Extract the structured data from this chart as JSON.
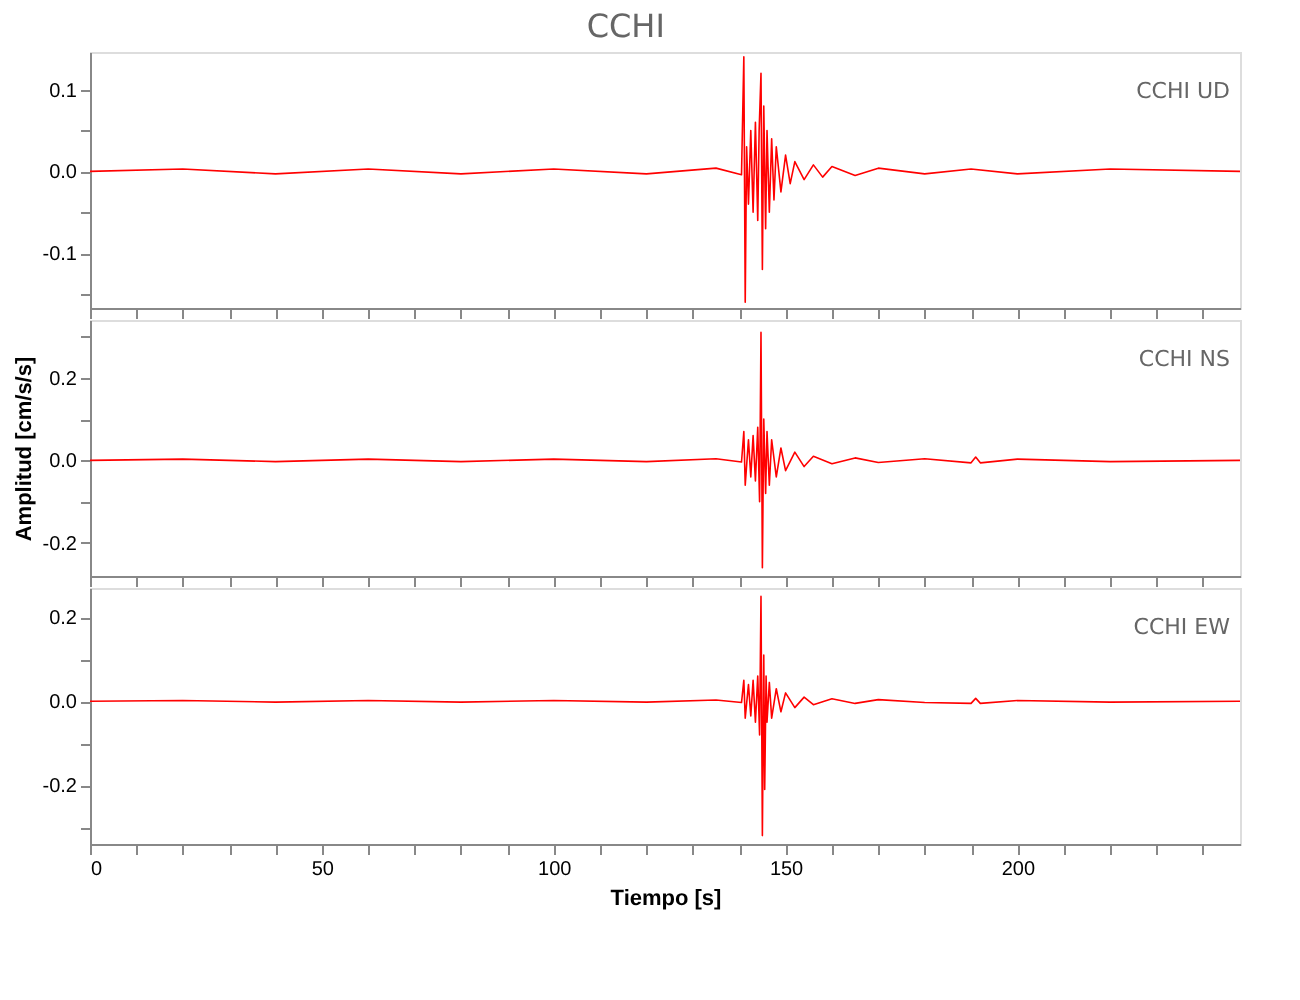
{
  "chart_data": [
    {
      "type": "line",
      "title": "CCHI",
      "annotations": [
        "CCHI UD"
      ],
      "tick_labels": "y",
      "grid": false,
      "xlim": [
        0,
        248
      ],
      "ylim": [
        -0.167,
        0.146
      ],
      "xticks": [
        0,
        {
          "value": 10,
          "label": null
        },
        {
          "value": 20,
          "label": null
        },
        {
          "value": 30,
          "label": null
        },
        {
          "value": 40,
          "label": null
        },
        50,
        {
          "value": 60,
          "label": null
        },
        {
          "value": 70,
          "label": null
        },
        {
          "value": 80,
          "label": null
        },
        {
          "value": 90,
          "label": null
        },
        100,
        {
          "value": 110,
          "label": null
        },
        {
          "value": 120,
          "label": null
        },
        {
          "value": 130,
          "label": null
        },
        {
          "value": 140,
          "label": null
        },
        150,
        {
          "value": 160,
          "label": null
        },
        {
          "value": 170,
          "label": null
        },
        {
          "value": 180,
          "label": null
        },
        {
          "value": 190,
          "label": null
        },
        200,
        {
          "value": 210,
          "label": null
        },
        {
          "value": 220,
          "label": null
        },
        {
          "value": 230,
          "label": null
        },
        {
          "value": 240,
          "label": null
        }
      ],
      "yticks": [
        {
          "value": -0.15,
          "label": null
        },
        -0.1,
        {
          "value": -0.05,
          "label": null
        },
        {
          "value": 0,
          "label": "0.0"
        },
        {
          "value": 0.05,
          "label": null
        },
        0.1
      ],
      "series": [
        {
          "color": "#ff0000",
          "x": [
            0,
            20,
            40,
            60,
            80,
            100,
            120,
            135,
            140.5,
            141,
            141.3,
            141.6,
            142,
            142.5,
            143,
            143.5,
            144,
            144.3,
            144.7,
            145,
            145.3,
            145.7,
            146,
            146.5,
            147,
            147.5,
            148,
            149,
            150,
            151,
            152,
            154,
            156,
            158,
            160,
            165,
            170,
            180,
            190,
            200,
            220,
            248
          ],
          "values": [
            0,
            0.003,
            -0.003,
            0.003,
            -0.003,
            0.003,
            -0.003,
            0.004,
            -0.004,
            0.14,
            -0.16,
            0.03,
            -0.04,
            0.05,
            -0.05,
            0.06,
            -0.06,
            0.05,
            0.12,
            -0.12,
            0.08,
            -0.07,
            0.05,
            -0.05,
            0.04,
            -0.035,
            0.03,
            -0.025,
            0.02,
            -0.015,
            0.012,
            -0.01,
            0.008,
            -0.007,
            0.006,
            -0.005,
            0.004,
            -0.003,
            0.003,
            -0.003,
            0.003,
            0
          ]
        }
      ]
    },
    {
      "type": "line",
      "ylabel": "Amplitud [cm/s/s]",
      "annotations": [
        "CCHI NS"
      ],
      "tick_labels": "y",
      "grid": false,
      "xlim": [
        0,
        248
      ],
      "ylim": [
        -0.28,
        0.34
      ],
      "xticks": [
        0,
        {
          "value": 10,
          "label": null
        },
        {
          "value": 20,
          "label": null
        },
        {
          "value": 30,
          "label": null
        },
        {
          "value": 40,
          "label": null
        },
        50,
        {
          "value": 60,
          "label": null
        },
        {
          "value": 70,
          "label": null
        },
        {
          "value": 80,
          "label": null
        },
        {
          "value": 90,
          "label": null
        },
        100,
        {
          "value": 110,
          "label": null
        },
        {
          "value": 120,
          "label": null
        },
        {
          "value": 130,
          "label": null
        },
        {
          "value": 140,
          "label": null
        },
        150,
        {
          "value": 160,
          "label": null
        },
        {
          "value": 170,
          "label": null
        },
        {
          "value": 180,
          "label": null
        },
        {
          "value": 190,
          "label": null
        },
        200,
        {
          "value": 210,
          "label": null
        },
        {
          "value": 220,
          "label": null
        },
        {
          "value": 230,
          "label": null
        },
        {
          "value": 240,
          "label": null
        }
      ],
      "yticks": [
        {
          "value": -0.2,
          "label": "-0.2"
        },
        {
          "value": -0.1,
          "label": null
        },
        {
          "value": 0,
          "label": "0.0"
        },
        {
          "value": 0.1,
          "label": null
        },
        0.2,
        {
          "value": 0.3,
          "label": null
        }
      ],
      "series": [
        {
          "color": "#ff0000",
          "x": [
            0,
            20,
            40,
            60,
            80,
            100,
            120,
            135,
            140.5,
            141,
            141.3,
            142,
            142.5,
            143,
            143.5,
            144,
            144.4,
            144.7,
            145,
            145.3,
            145.7,
            146,
            146.5,
            147,
            148,
            149,
            150,
            152,
            154,
            156,
            160,
            165,
            170,
            180,
            190,
            191,
            192,
            200,
            220,
            248
          ],
          "values": [
            0,
            0.003,
            -0.003,
            0.003,
            -0.003,
            0.003,
            -0.003,
            0.004,
            -0.004,
            0.07,
            -0.06,
            0.05,
            -0.04,
            0.06,
            -0.05,
            0.08,
            -0.1,
            0.31,
            -0.26,
            0.1,
            -0.08,
            0.07,
            -0.06,
            0.05,
            -0.04,
            0.03,
            -0.025,
            0.02,
            -0.015,
            0.01,
            -0.008,
            0.006,
            -0.005,
            0.004,
            -0.006,
            0.008,
            -0.006,
            0.003,
            -0.003,
            0
          ]
        }
      ]
    },
    {
      "type": "line",
      "xlabel": "Tiempo [s]",
      "annotations": [
        "CCHI EW"
      ],
      "grid": false,
      "xlim": [
        0,
        248
      ],
      "ylim": [
        -0.34,
        0.27
      ],
      "xticks": [
        0,
        {
          "value": 10,
          "label": null
        },
        {
          "value": 20,
          "label": null
        },
        {
          "value": 30,
          "label": null
        },
        {
          "value": 40,
          "label": null
        },
        50,
        {
          "value": 60,
          "label": null
        },
        {
          "value": 70,
          "label": null
        },
        {
          "value": 80,
          "label": null
        },
        {
          "value": 90,
          "label": null
        },
        100,
        {
          "value": 110,
          "label": null
        },
        {
          "value": 120,
          "label": null
        },
        {
          "value": 130,
          "label": null
        },
        {
          "value": 140,
          "label": null
        },
        150,
        {
          "value": 160,
          "label": null
        },
        {
          "value": 170,
          "label": null
        },
        {
          "value": 180,
          "label": null
        },
        {
          "value": 190,
          "label": null
        },
        200,
        {
          "value": 210,
          "label": null
        },
        {
          "value": 220,
          "label": null
        },
        {
          "value": 230,
          "label": null
        },
        {
          "value": 240,
          "label": null
        }
      ],
      "yticks": [
        {
          "value": -0.3,
          "label": null
        },
        {
          "value": -0.2,
          "label": "-0.2"
        },
        {
          "value": -0.1,
          "label": null
        },
        {
          "value": 0,
          "label": "0.0"
        },
        {
          "value": 0.1,
          "label": null
        },
        0.2
      ],
      "series": [
        {
          "color": "#ff0000",
          "x": [
            0,
            20,
            40,
            60,
            80,
            100,
            120,
            135,
            140.5,
            141,
            141.3,
            142,
            142.5,
            143,
            143.5,
            144,
            144.4,
            144.7,
            145,
            145.3,
            145.5,
            145.8,
            146,
            146.5,
            147,
            148,
            149,
            150,
            152,
            154,
            156,
            160,
            165,
            170,
            180,
            190,
            191,
            192,
            200,
            220,
            248
          ],
          "values": [
            0,
            0.002,
            -0.002,
            0.002,
            -0.002,
            0.002,
            -0.002,
            0.003,
            -0.003,
            0.05,
            -0.04,
            0.04,
            -0.035,
            0.05,
            -0.05,
            0.06,
            -0.08,
            0.25,
            -0.32,
            0.11,
            -0.21,
            0.06,
            -0.05,
            0.045,
            -0.04,
            0.03,
            -0.025,
            0.02,
            -0.015,
            0.01,
            -0.008,
            0.006,
            -0.005,
            0.004,
            -0.003,
            -0.005,
            0.007,
            -0.005,
            0.002,
            -0.002,
            0
          ]
        }
      ]
    }
  ]
}
